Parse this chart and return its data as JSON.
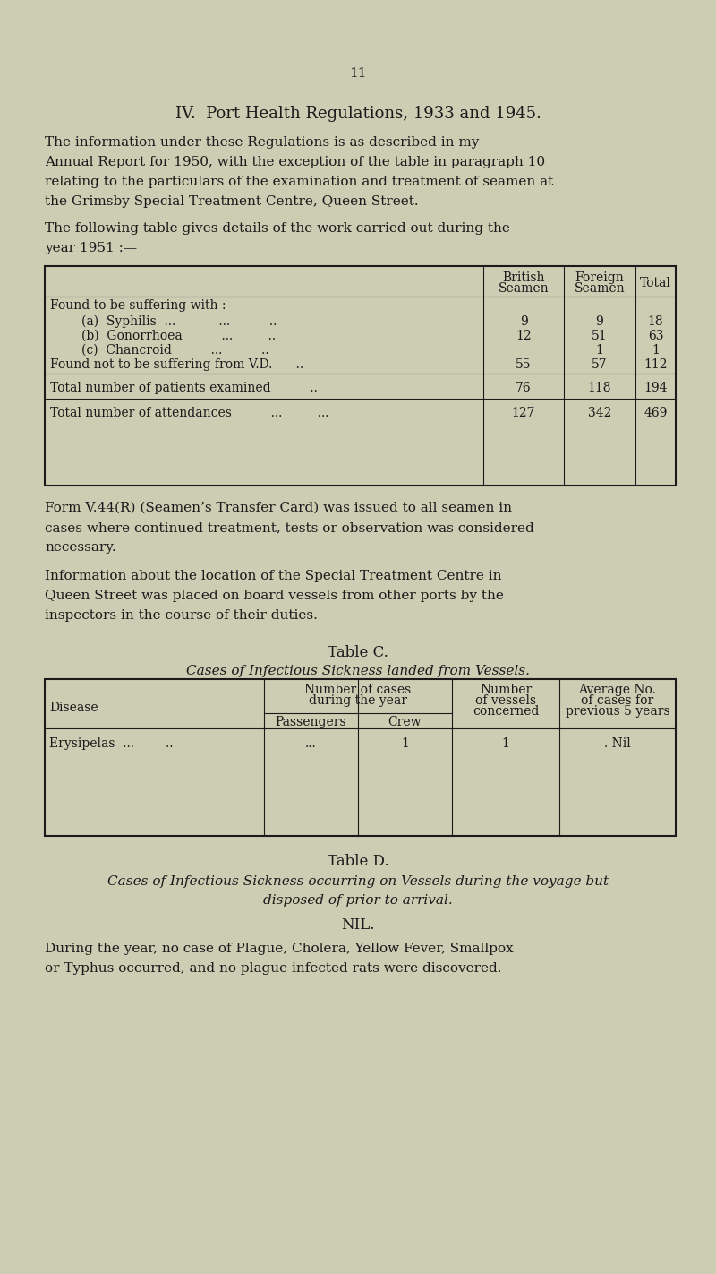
{
  "bg_color": "#cccdb3",
  "text_color": "#1a1a1a",
  "page_number": "11",
  "section_title": "IV.  Port Health Regulations, 1933 and 1945.",
  "para1_lines": [
    "The information under these Regulations is as described in my",
    "Annual Report for 1950, with the exception of the table in paragraph 10",
    "relating to the particulars of the examination and treatment of seamen at",
    "the Grimsby Special Treatment Centre, Queen Street."
  ],
  "para2_lines": [
    "The following table gives details of the work carried out during the",
    "year 1951 :—"
  ],
  "para3_lines": [
    "Form V.44(R) (Seamen’s Transfer Card) was issued to all seamen in",
    "cases where continued treatment, tests or observation was considered",
    "necessary."
  ],
  "para4_lines": [
    "Information about the location of the Special Treatment Centre in",
    "Queen Street was placed on board vessels from other ports by the",
    "inspectors in the course of their duties."
  ],
  "table_c_title": "Table C.",
  "table_c_subtitle": "Cases of Infectious Sickness landed from Vessels.",
  "table_d_title": "Table D.",
  "table_d_subtitle_lines": [
    "Cases of Infectious Sickness occurring on Vessels during the voyage but",
    "disposed of prior to arrival."
  ],
  "table_d_value": "NIL.",
  "final_para_lines": [
    "During the year, no case of Plague, Cholera, Yellow Fever, Smallpox",
    "or Typhus occurred, and no plague infected rats were discovered."
  ]
}
